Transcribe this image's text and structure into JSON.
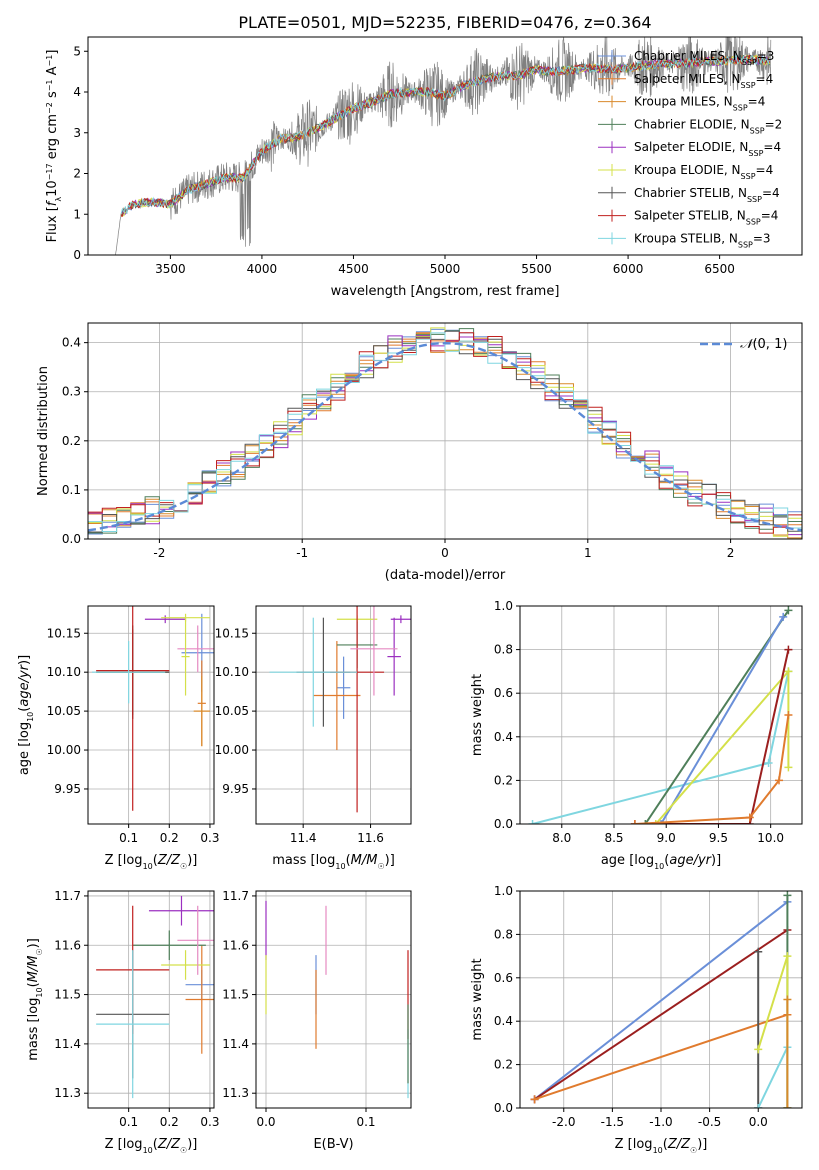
{
  "figure_title": "PLATE=0501, MJD=52235, FIBERID=0476, z=0.364",
  "colors": {
    "grid": "#b0b0b0",
    "spectrum_data": "#808080",
    "normal_curve": "#5b8ad6",
    "models": [
      "#6a8fd8",
      "#e07b2e",
      "#d98a2b",
      "#4f7f5a",
      "#9b30c0",
      "#d4e04a",
      "#555555",
      "#c0201f",
      "#7fd6e0"
    ],
    "extra": [
      "#e58ac2",
      "#9b1f1f"
    ]
  },
  "chart_data": [
    {
      "id": "spectrum",
      "type": "line",
      "title": "PLATE=0501, MJD=52235, FIBERID=0476, z=0.364",
      "xlabel": "wavelength [Angstrom, rest frame]",
      "ylabel": "Flux [f_λ10^-17 erg cm^-2 s^-1 A^-1]",
      "xlim": [
        3050,
        6950
      ],
      "ylim": [
        0,
        5.35
      ],
      "xticks": [
        3500,
        4000,
        4500,
        5000,
        5500,
        6000,
        6500
      ],
      "yticks": [
        0,
        1,
        2,
        3,
        4,
        5
      ],
      "grid": false,
      "legend_position": "upper-right",
      "legend": [
        "Chabrier MILES, N_SSP=3",
        "Salpeter MILES, N_SSP=4",
        "Kroupa MILES, N_SSP=4",
        "Chabrier ELODIE, N_SSP=2",
        "Salpeter ELODIE, N_SSP=4",
        "Kroupa ELODIE, N_SSP=4",
        "Chabrier STELIB, N_SSP=4",
        "Salpeter STELIB, N_SSP=4",
        "Kroupa STELIB, N_SSP=3"
      ],
      "continuum": {
        "x": [
          3200,
          3230,
          3300,
          3400,
          3500,
          3600,
          3700,
          3800,
          3900,
          4000,
          4100,
          4200,
          4300,
          4400,
          4500,
          4600,
          4700,
          4800,
          4900,
          5000,
          5100,
          5200,
          5300,
          5400,
          5500,
          5600,
          5700,
          5800,
          5900,
          6000,
          6100,
          6200,
          6300,
          6400,
          6500,
          6600,
          6700,
          6780
        ],
        "y": [
          0,
          1.0,
          1.25,
          1.3,
          1.25,
          1.6,
          1.75,
          1.9,
          1.9,
          2.55,
          2.85,
          2.9,
          3.1,
          3.35,
          3.6,
          3.75,
          3.95,
          4.0,
          4.0,
          3.9,
          4.15,
          4.3,
          4.4,
          4.4,
          4.55,
          4.5,
          4.55,
          4.6,
          4.55,
          4.6,
          4.65,
          4.7,
          4.7,
          4.75,
          4.75,
          4.8,
          4.8,
          4.75
        ]
      }
    },
    {
      "id": "residuals",
      "type": "line",
      "xlabel": "(data-model)/error",
      "ylabel": "Normed distribution",
      "xlim": [
        -2.5,
        2.5
      ],
      "ylim": [
        0,
        0.44
      ],
      "xticks": [
        -2,
        -1,
        0,
        1,
        2
      ],
      "yticks": [
        0.0,
        0.1,
        0.2,
        0.3,
        0.4
      ],
      "grid": true,
      "legend_position": "upper-right",
      "legend": [
        "N(0,1)"
      ]
    },
    {
      "id": "age-vs-Z",
      "type": "scatter",
      "xlabel": "Z [log10(Z/Z☉)]",
      "ylabel": "age  [log10(age/yr)]",
      "xlim": [
        0.0,
        0.31
      ],
      "ylim": [
        9.905,
        10.185
      ],
      "xticks": [
        0.1,
        0.2,
        0.3
      ],
      "yticks": [
        9.95,
        10.0,
        10.05,
        10.1,
        10.15
      ],
      "grid": true,
      "errorbars": [
        {
          "c": 0,
          "x": 0.28,
          "xe": 0.05,
          "y": 10.125,
          "ye": 0.05
        },
        {
          "c": 1,
          "x": 0.28,
          "xe": 0.01,
          "y": 10.06,
          "ye": 0.055
        },
        {
          "c": 2,
          "x": 0.28,
          "xe": 0.02,
          "y": 10.05,
          "ye": 0.045
        },
        {
          "c": 3,
          "x": 0.11,
          "xe": 0.09,
          "y": 10.1,
          "ye": 0.055
        },
        {
          "c": 4,
          "x": 0.19,
          "xe": 0.05,
          "y": 10.168,
          "ye": 0.005
        },
        {
          "c": 5,
          "x": 0.24,
          "xe": 0.06,
          "y": 10.17,
          "ye": 0.005
        },
        {
          "c": 6,
          "x": 0.11,
          "xe": 0.09,
          "y": 10.1,
          "ye": 0.06
        },
        {
          "c": 7,
          "x": 0.11,
          "xe": 0.09,
          "y": 10.102,
          "ye": 0.18
        },
        {
          "c": 8,
          "x": 0.1,
          "xe": 0.09,
          "y": 10.1,
          "ye": 0.04
        },
        {
          "c": 9,
          "x": 0.27,
          "xe": 0.05,
          "y": 10.13,
          "ye": 0.03
        },
        {
          "c": 5,
          "x": 0.24,
          "xe": 0.01,
          "y": 10.12,
          "ye": 0.05
        }
      ]
    },
    {
      "id": "age-vs-mass",
      "type": "scatter",
      "xlabel": "mass [log10(M/M☉)]",
      "ylabel": "",
      "xlim": [
        11.26,
        11.72
      ],
      "ylim": [
        9.905,
        10.185
      ],
      "xticks": [
        11.4,
        11.6
      ],
      "yticks": [
        9.95,
        10.0,
        10.05,
        10.1,
        10.15
      ],
      "grid": true,
      "errorbars": [
        {
          "c": 0,
          "x": 11.52,
          "xe": 0.02,
          "y": 10.08,
          "ye": 0.04
        },
        {
          "c": 1,
          "x": 11.5,
          "xe": 0.07,
          "y": 10.07,
          "ye": 0.07
        },
        {
          "c": 3,
          "x": 11.56,
          "xe": 0.06,
          "y": 10.135,
          "ye": 0.03
        },
        {
          "c": 4,
          "x": 11.67,
          "xe": 0.02,
          "y": 10.12,
          "ye": 0.05
        },
        {
          "c": 5,
          "x": 11.56,
          "xe": 0.06,
          "y": 10.168,
          "ye": 0.005
        },
        {
          "c": 6,
          "x": 11.46,
          "xe": 0.08,
          "y": 10.1,
          "ye": 0.07
        },
        {
          "c": 7,
          "x": 11.56,
          "xe": 0.08,
          "y": 10.1,
          "ye": 0.18
        },
        {
          "c": 8,
          "x": 11.43,
          "xe": 0.13,
          "y": 10.1,
          "ye": 0.07
        },
        {
          "c": 9,
          "x": 11.61,
          "xe": 0.07,
          "y": 10.13,
          "ye": 0.06
        },
        {
          "c": 4,
          "x": 11.69,
          "xe": 0.03,
          "y": 10.168,
          "ye": 0.005
        }
      ]
    },
    {
      "id": "mass-weight-vs-age",
      "type": "line",
      "xlabel": "age  [log10(age/yr)]",
      "ylabel": "mass weight",
      "xlim": [
        7.6,
        10.3
      ],
      "ylim": [
        0,
        1.0
      ],
      "xticks": [
        8.0,
        8.5,
        9.0,
        9.5,
        10.0
      ],
      "yticks": [
        0.0,
        0.2,
        0.4,
        0.6,
        0.8,
        1.0
      ],
      "grid": true,
      "series": [
        {
          "c": 8,
          "x": [
            7.72,
            9.98,
            10.17
          ],
          "y": [
            0.0,
            0.28,
            0.7
          ]
        },
        {
          "c": 3,
          "x": [
            8.8,
            10.17
          ],
          "y": [
            0.0,
            0.98
          ]
        },
        {
          "c": 0,
          "x": [
            8.95,
            10.12
          ],
          "y": [
            0.0,
            0.95
          ]
        },
        {
          "c": 5,
          "x": [
            8.9,
            10.17,
            10.17
          ],
          "y": [
            0.0,
            0.7,
            0.26
          ]
        },
        {
          "c": 10,
          "x": [
            8.7,
            9.8,
            10.17
          ],
          "y": [
            0.0,
            0.0,
            0.8
          ]
        },
        {
          "c": 1,
          "x": [
            8.7,
            9.8,
            10.08,
            10.17
          ],
          "y": [
            0.0,
            0.03,
            0.2,
            0.5
          ]
        },
        {
          "c": 11,
          "x": [
            8.75,
            9.97,
            10.03,
            10.17
          ],
          "y": [
            0.0,
            0.2,
            0.08,
            0.72
          ]
        }
      ]
    },
    {
      "id": "mass-vs-Z",
      "type": "scatter",
      "xlabel": "Z [log10(Z/Z☉)]",
      "ylabel": "mass [log10(M/M☉)]",
      "xlim": [
        0.0,
        0.31
      ],
      "ylim": [
        11.27,
        11.71
      ],
      "xticks": [
        0.1,
        0.2,
        0.3
      ],
      "yticks": [
        11.3,
        11.4,
        11.5,
        11.6,
        11.7
      ],
      "grid": true,
      "errorbars": [
        {
          "c": 0,
          "x": 0.28,
          "xe": 0.04,
          "y": 11.52,
          "ye": 0.03
        },
        {
          "c": 1,
          "x": 0.28,
          "xe": 0.04,
          "y": 11.49,
          "ye": 0.11
        },
        {
          "c": 3,
          "x": 0.2,
          "xe": 0.09,
          "y": 11.6,
          "ye": 0.03
        },
        {
          "c": 4,
          "x": 0.23,
          "xe": 0.08,
          "y": 11.67,
          "ye": 0.03
        },
        {
          "c": 5,
          "x": 0.24,
          "xe": 0.06,
          "y": 11.56,
          "ye": 0.03
        },
        {
          "c": 6,
          "x": 0.11,
          "xe": 0.09,
          "y": 11.46,
          "ye": 0.13
        },
        {
          "c": 7,
          "x": 0.11,
          "xe": 0.09,
          "y": 11.55,
          "ye": 0.13
        },
        {
          "c": 8,
          "x": 0.11,
          "xe": 0.09,
          "y": 11.44,
          "ye": 0.15
        },
        {
          "c": 9,
          "x": 0.27,
          "xe": 0.05,
          "y": 11.61,
          "ye": 0.07
        }
      ]
    },
    {
      "id": "mass-vs-EBV",
      "type": "scatter",
      "xlabel": "E(B-V)",
      "ylabel": "",
      "xlim": [
        -0.01,
        0.145
      ],
      "ylim": [
        11.27,
        11.71
      ],
      "xticks": [
        0.0,
        0.1
      ],
      "yticks": [
        11.3,
        11.4,
        11.5,
        11.6,
        11.7
      ],
      "grid": true,
      "errorbars": [
        {
          "c": 4,
          "x": 0.0,
          "xe": 0.0,
          "y": 11.63,
          "ye": 0.06
        },
        {
          "c": 5,
          "x": 0.0,
          "xe": 0.0,
          "y": 11.52,
          "ye": 0.06
        },
        {
          "c": 0,
          "x": 0.05,
          "xe": 0.0,
          "y": 11.52,
          "ye": 0.06
        },
        {
          "c": 1,
          "x": 0.05,
          "xe": 0.0,
          "y": 11.47,
          "ye": 0.08
        },
        {
          "c": 9,
          "x": 0.06,
          "xe": 0.0,
          "y": 11.61,
          "ye": 0.07
        },
        {
          "c": 7,
          "x": 0.142,
          "xe": 0.0,
          "y": 11.5,
          "ye": 0.09
        },
        {
          "c": 8,
          "x": 0.142,
          "xe": 0.0,
          "y": 11.36,
          "ye": 0.07
        },
        {
          "c": 3,
          "x": 0.142,
          "xe": 0.0,
          "y": 11.4,
          "ye": 0.08
        }
      ]
    },
    {
      "id": "mass-weight-vs-Z",
      "type": "line",
      "xlabel": "Z [log10(Z/Z☉)]",
      "ylabel": "mass weight",
      "xlim": [
        -2.45,
        0.45
      ],
      "ylim": [
        0,
        1.0
      ],
      "xticks": [
        -2.0,
        -1.5,
        -1.0,
        -0.5,
        0.0
      ],
      "yticks": [
        0.0,
        0.2,
        0.4,
        0.6,
        0.8,
        1.0
      ],
      "grid": true,
      "series": [
        {
          "c": 0,
          "x": [
            -2.3,
            0.3
          ],
          "y": [
            0.04,
            0.95
          ]
        },
        {
          "c": 10,
          "x": [
            -2.3,
            0.3
          ],
          "y": [
            0.04,
            0.82
          ]
        },
        {
          "c": 1,
          "x": [
            -2.3,
            0.3
          ],
          "y": [
            0.04,
            0.43
          ]
        },
        {
          "c": 3,
          "x": [
            0.3,
            0.3
          ],
          "y": [
            0.0,
            0.98
          ]
        },
        {
          "c": 6,
          "x": [
            0.0,
            0.0
          ],
          "y": [
            0.0,
            0.72
          ]
        },
        {
          "c": 5,
          "x": [
            0.0,
            0.3,
            0.3
          ],
          "y": [
            0.27,
            0.7,
            0.0
          ]
        },
        {
          "c": 8,
          "x": [
            0.0,
            0.3,
            0.3
          ],
          "y": [
            0.0,
            0.28,
            0.0
          ]
        },
        {
          "c": 11,
          "x": [
            0.3,
            0.3
          ],
          "y": [
            0.0,
            0.2
          ]
        },
        {
          "c": 2,
          "x": [
            0.3,
            0.3
          ],
          "y": [
            0.0,
            0.5
          ]
        }
      ]
    }
  ]
}
